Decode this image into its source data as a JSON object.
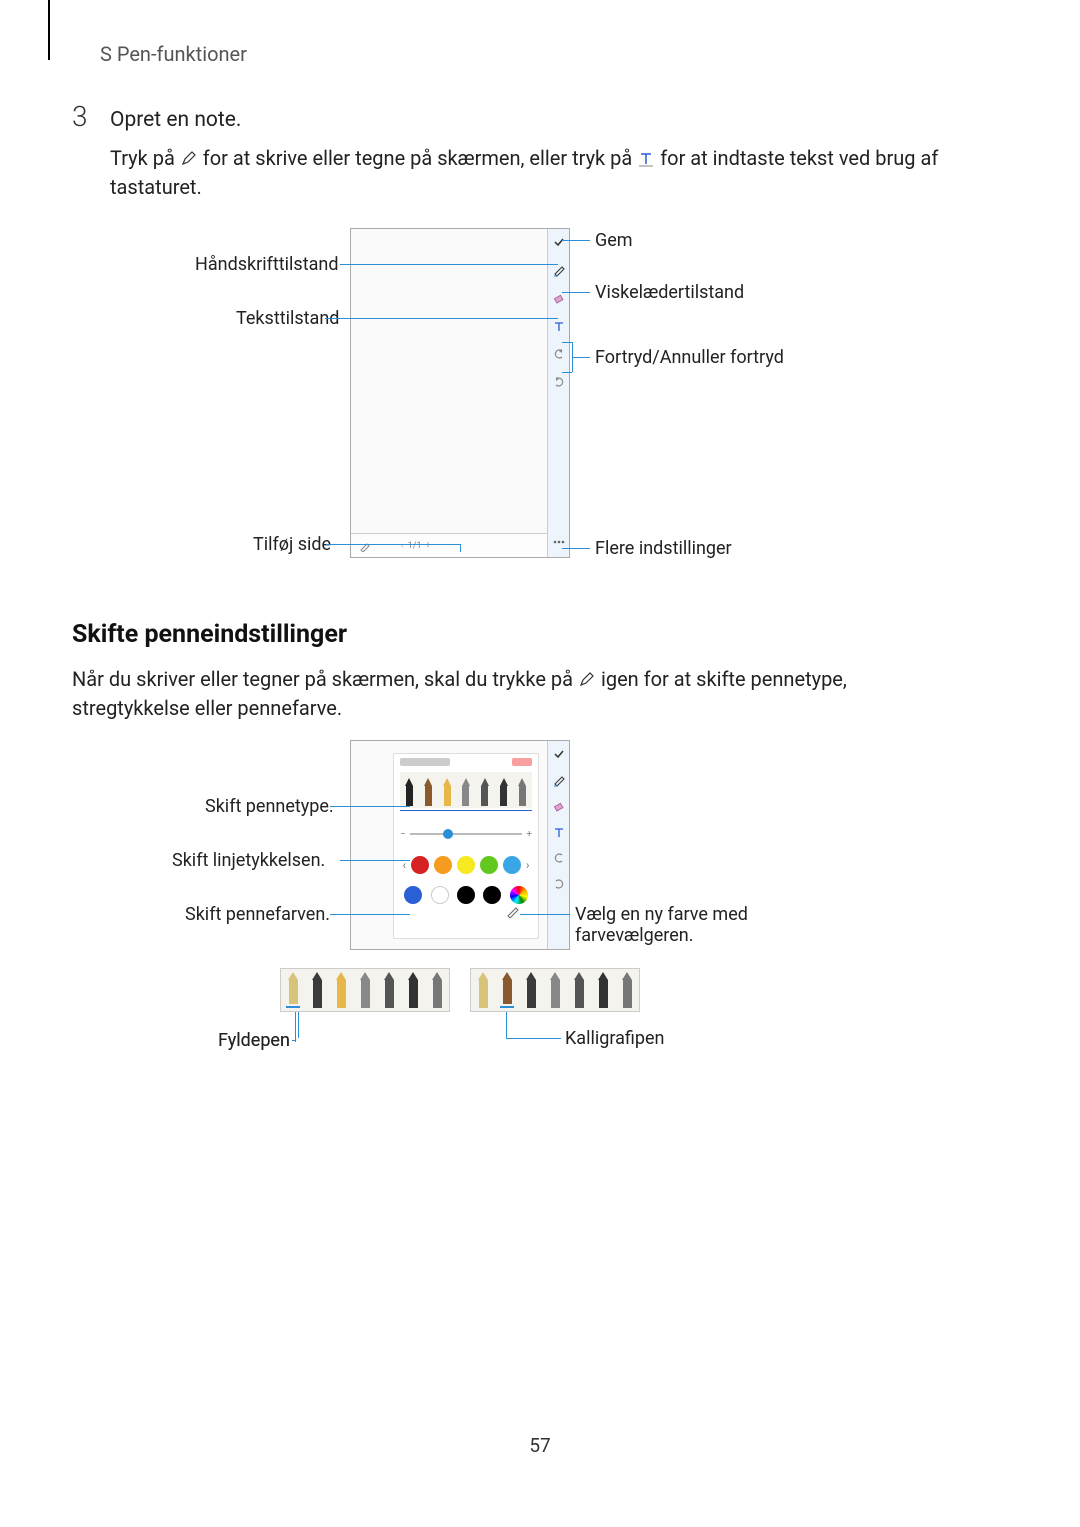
{
  "header": {
    "title": "S Pen-funktioner"
  },
  "step": {
    "number": "3",
    "title": "Opret en note.",
    "body_pre": "Tryk på ",
    "body_mid": " for at skrive eller tegne på skærmen, eller tryk på ",
    "body_post": " for at indtaste tekst ved brug af tastaturet."
  },
  "diag1": {
    "callouts": {
      "handwriting": "Håndskrifttilstand",
      "textmode": "Teksttilstand",
      "addpage": "Tilføj side",
      "save": "Gem",
      "eraser": "Viskelædertilstand",
      "undo": "Fortryd/Annuller fortryd",
      "more": "Flere indstillinger"
    },
    "bottom": {
      "pager": "1/1",
      "plus": "+"
    },
    "colors": {
      "line": "#2a8fd6",
      "side_bg": "#eef4fb",
      "border": "#aaa"
    }
  },
  "section2": {
    "title": "Skifte penneindstillinger",
    "body_pre": "Når du skriver eller tegner på skærmen, skal du trykke på ",
    "body_post": " igen for at skifte pennetype, stregtykkelse eller pennefarve."
  },
  "diag2": {
    "callouts": {
      "pentype": "Skift pennetype.",
      "thickness": "Skift linjetykkelsen.",
      "pencolor": "Skift pennefarven.",
      "colorpicker": "Vælg en ny farve med farvevælgeren.",
      "fountain": "Fyldepen",
      "calli": "Kalligrafipen"
    },
    "palette_row1": [
      "#d62222",
      "#f59b1f",
      "#f6e91f",
      "#63c81e",
      "#3aa6e6"
    ],
    "palette_row2": [
      "#2a5fd6",
      "#ffffff",
      "#000000",
      "#000000"
    ],
    "rainbow_gradient": "conic-gradient(red,orange,yellow,green,cyan,blue,magenta,red)",
    "pen_colors": [
      "#222222",
      "#8a5a2e",
      "#e6b84a",
      "#888888",
      "#555555",
      "#333333",
      "#777777"
    ],
    "strip_a_colors": [
      "#d7c37a",
      "#3b3b3b",
      "#e6b84a",
      "#888888",
      "#555555",
      "#333333",
      "#777777"
    ],
    "strip_b_colors": [
      "#d7c37a",
      "#8a5a2e",
      "#3b3b3b",
      "#888888",
      "#555555",
      "#333333",
      "#777777"
    ]
  },
  "page_number": "57"
}
